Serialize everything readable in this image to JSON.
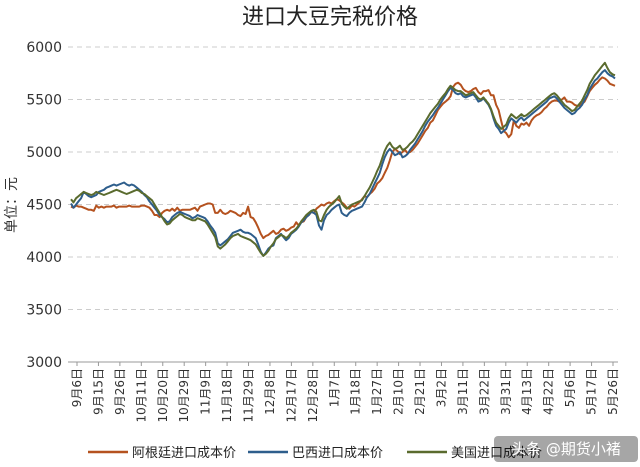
{
  "chart_data": {
    "type": "line",
    "title": "进口大豆完税价格",
    "xlabel": "",
    "ylabel": "单位：元",
    "ylim": [
      3000,
      6000
    ],
    "yticks": [
      3000,
      3500,
      4000,
      4500,
      5000,
      5500,
      6000
    ],
    "grid": "horizontal-dashed",
    "legend_position": "bottom",
    "x_tick_labels": [
      "9月6日",
      "9月15日",
      "9月26日",
      "10月11日",
      "10月20日",
      "10月29日",
      "11月9日",
      "11月18日",
      "11月29日",
      "12月8日",
      "12月17日",
      "12月28日",
      "1月7日",
      "1月18日",
      "1月27日",
      "2月10日",
      "2月21日",
      "3月2日",
      "3月11日",
      "3月22日",
      "3月31日",
      "4月13日",
      "4月22日",
      "5月6日",
      "5月17日",
      "5月26日"
    ],
    "series": [
      {
        "name": "阿根廷进口成本价",
        "color": "#b5521f",
        "values": [
          4480,
          4470,
          4490,
          4480,
          4480,
          4470,
          4460,
          4450,
          4450,
          4440,
          4490,
          4470,
          4480,
          4470,
          4480,
          4480,
          4480,
          4490,
          4470,
          4480,
          4480,
          4480,
          4480,
          4490,
          4480,
          4480,
          4480,
          4480,
          4490,
          4490,
          4480,
          4470,
          4440,
          4400,
          4400,
          4380,
          4420,
          4440,
          4450,
          4440,
          4460,
          4440,
          4470,
          4440,
          4450,
          4450,
          4450,
          4450,
          4460,
          4470,
          4440,
          4480,
          4490,
          4500,
          4510,
          4510,
          4500,
          4420,
          4420,
          4450,
          4420,
          4410,
          4420,
          4440,
          4430,
          4420,
          4400,
          4390,
          4420,
          4410,
          4480,
          4380,
          4370,
          4330,
          4280,
          4220,
          4180,
          4200,
          4210,
          4230,
          4250,
          4220,
          4230,
          4260,
          4270,
          4250,
          4260,
          4280,
          4290,
          4330,
          4300,
          4330,
          4340,
          4380,
          4400,
          4430,
          4420,
          4460,
          4480,
          4500,
          4490,
          4510,
          4520,
          4510,
          4530,
          4550,
          4540,
          4520,
          4500,
          4470,
          4460,
          4490,
          4480,
          4500,
          4520,
          4550,
          4580,
          4570,
          4600,
          4620,
          4650,
          4700,
          4720,
          4750,
          4800,
          4850,
          4920,
          5000,
          5030,
          5010,
          4980,
          5000,
          5020,
          4990,
          5000,
          5020,
          5050,
          5080,
          5120,
          5160,
          5200,
          5230,
          5280,
          5300,
          5350,
          5400,
          5430,
          5460,
          5480,
          5500,
          5530,
          5620,
          5650,
          5660,
          5640,
          5600,
          5580,
          5570,
          5580,
          5600,
          5610,
          5570,
          5550,
          5580,
          5580,
          5590,
          5540,
          5540,
          5450,
          5400,
          5300,
          5200,
          5180,
          5140,
          5170,
          5300,
          5250,
          5230,
          5270,
          5260,
          5280,
          5250,
          5300,
          5330,
          5350,
          5360,
          5380,
          5410,
          5430,
          5460,
          5480,
          5490,
          5490,
          5480,
          5500,
          5520,
          5480,
          5480,
          5470,
          5450,
          5440,
          5440,
          5460,
          5480,
          5530,
          5580,
          5610,
          5640,
          5660,
          5690,
          5710,
          5700,
          5680,
          5650,
          5640,
          5630
        ]
      },
      {
        "name": "巴西进口成本价",
        "color": "#2e5e8c",
        "values": [
          4510,
          4470,
          4500,
          4530,
          4560,
          4620,
          4600,
          4580,
          4570,
          4580,
          4590,
          4620,
          4630,
          4640,
          4660,
          4670,
          4680,
          4690,
          4680,
          4690,
          4700,
          4710,
          4690,
          4680,
          4690,
          4680,
          4660,
          4640,
          4620,
          4590,
          4570,
          4530,
          4500,
          4470,
          4440,
          4400,
          4380,
          4360,
          4330,
          4340,
          4380,
          4400,
          4420,
          4430,
          4420,
          4410,
          4400,
          4390,
          4370,
          4380,
          4400,
          4390,
          4380,
          4370,
          4340,
          4300,
          4270,
          4230,
          4130,
          4110,
          4130,
          4150,
          4170,
          4200,
          4230,
          4240,
          4250,
          4260,
          4240,
          4230,
          4230,
          4220,
          4200,
          4180,
          4120,
          4050,
          4010,
          4040,
          4080,
          4100,
          4110,
          4180,
          4200,
          4220,
          4190,
          4160,
          4180,
          4220,
          4240,
          4260,
          4290,
          4330,
          4350,
          4380,
          4400,
          4430,
          4420,
          4400,
          4300,
          4260,
          4350,
          4400,
          4420,
          4450,
          4470,
          4490,
          4500,
          4420,
          4400,
          4390,
          4420,
          4440,
          4450,
          4460,
          4470,
          4480,
          4520,
          4570,
          4600,
          4650,
          4700,
          4750,
          4800,
          4880,
          4950,
          5000,
          5030,
          5000,
          4970,
          4980,
          5000,
          4950,
          4960,
          4980,
          5020,
          5050,
          5080,
          5120,
          5160,
          5200,
          5250,
          5290,
          5320,
          5350,
          5390,
          5420,
          5460,
          5500,
          5540,
          5580,
          5610,
          5590,
          5560,
          5550,
          5560,
          5530,
          5520,
          5530,
          5540,
          5550,
          5520,
          5480,
          5490,
          5510,
          5480,
          5450,
          5400,
          5320,
          5250,
          5220,
          5180,
          5200,
          5220,
          5280,
          5320,
          5300,
          5280,
          5310,
          5330,
          5300,
          5320,
          5340,
          5360,
          5380,
          5400,
          5420,
          5440,
          5460,
          5480,
          5510,
          5520,
          5530,
          5510,
          5480,
          5450,
          5420,
          5400,
          5380,
          5360,
          5370,
          5400,
          5420,
          5450,
          5500,
          5540,
          5600,
          5640,
          5680,
          5700,
          5730,
          5760,
          5780,
          5750,
          5730,
          5720,
          5700
        ]
      },
      {
        "name": "美国进口成本价",
        "color": "#5a6b2e",
        "values": [
          4550,
          4520,
          4560,
          4580,
          4600,
          4620,
          4610,
          4600,
          4590,
          4600,
          4620,
          4610,
          4600,
          4590,
          4600,
          4610,
          4620,
          4630,
          4640,
          4630,
          4620,
          4610,
          4600,
          4610,
          4620,
          4630,
          4640,
          4630,
          4610,
          4600,
          4580,
          4560,
          4540,
          4500,
          4460,
          4420,
          4380,
          4340,
          4310,
          4320,
          4350,
          4370,
          4390,
          4410,
          4400,
          4380,
          4370,
          4360,
          4350,
          4350,
          4370,
          4360,
          4350,
          4340,
          4310,
          4270,
          4230,
          4190,
          4100,
          4080,
          4100,
          4120,
          4150,
          4180,
          4200,
          4210,
          4220,
          4200,
          4190,
          4180,
          4170,
          4160,
          4140,
          4120,
          4080,
          4040,
          4010,
          4030,
          4060,
          4100,
          4130,
          4170,
          4190,
          4210,
          4200,
          4180,
          4200,
          4230,
          4250,
          4270,
          4300,
          4340,
          4370,
          4400,
          4420,
          4440,
          4450,
          4430,
          4350,
          4340,
          4400,
          4450,
          4480,
          4500,
          4520,
          4550,
          4580,
          4510,
          4480,
          4460,
          4480,
          4500,
          4510,
          4520,
          4530,
          4540,
          4580,
          4620,
          4660,
          4710,
          4760,
          4820,
          4870,
          4940,
          5010,
          5060,
          5090,
          5050,
          5030,
          5040,
          5060,
          5020,
          5030,
          5050,
          5080,
          5100,
          5130,
          5170,
          5210,
          5250,
          5290,
          5330,
          5370,
          5400,
          5430,
          5460,
          5500,
          5530,
          5560,
          5600,
          5630,
          5610,
          5590,
          5580,
          5580,
          5560,
          5540,
          5550,
          5560,
          5570,
          5540,
          5510,
          5500,
          5520,
          5490,
          5460,
          5410,
          5340,
          5280,
          5250,
          5220,
          5240,
          5260,
          5320,
          5360,
          5340,
          5320,
          5340,
          5360,
          5340,
          5350,
          5370,
          5390,
          5410,
          5430,
          5450,
          5470,
          5490,
          5510,
          5530,
          5550,
          5560,
          5540,
          5510,
          5480,
          5450,
          5430,
          5410,
          5390,
          5400,
          5430,
          5460,
          5490,
          5540,
          5590,
          5650,
          5690,
          5730,
          5760,
          5790,
          5820,
          5850,
          5800,
          5760,
          5740,
          5730
        ]
      }
    ]
  },
  "watermark_text": "头条 @期货小褚"
}
